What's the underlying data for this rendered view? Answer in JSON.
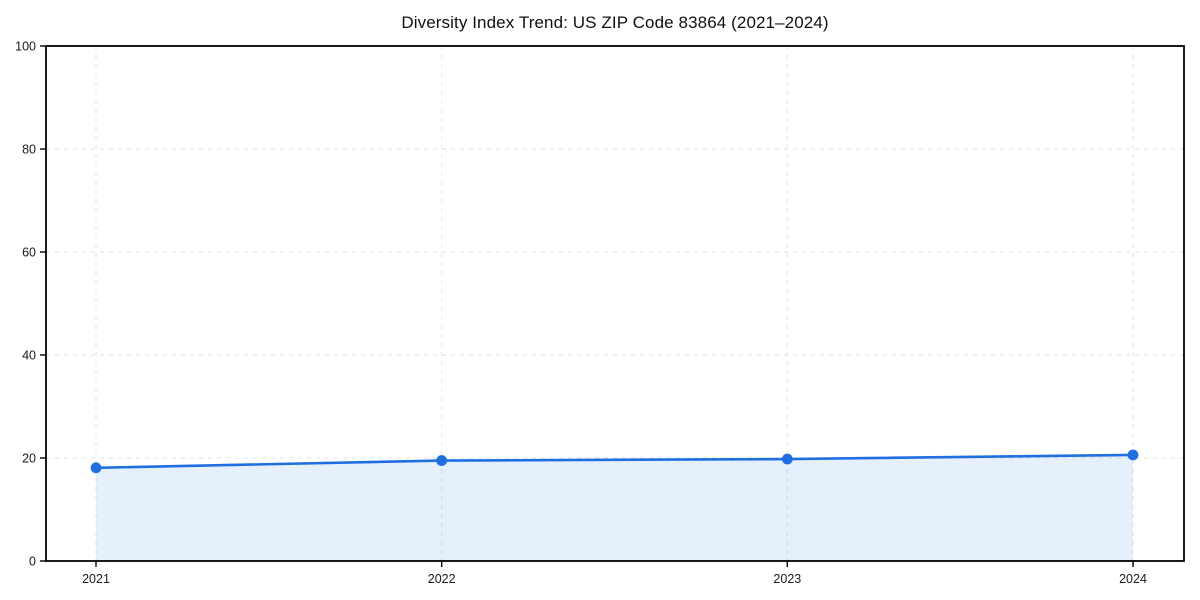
{
  "chart_data": {
    "type": "area",
    "title": "Diversity Index Trend: US ZIP Code 83864 (2021–2024)",
    "categories": [
      "2021",
      "2022",
      "2023",
      "2024"
    ],
    "series": [
      {
        "name": "Diversity Index",
        "values": [
          18.1,
          19.5,
          19.8,
          20.6
        ]
      }
    ],
    "xlabel": "",
    "ylabel": "",
    "ylim": [
      0,
      100
    ],
    "yticks": [
      0,
      20,
      40,
      60,
      80,
      100
    ],
    "grid": "dashed-both-axes",
    "legend": "none",
    "line_color": "#1f6fe0",
    "fill_color": "rgba(31, 111, 224, 0.11)",
    "marker": "circle",
    "marker_color": "#1f6fe0",
    "grid_color": "#e2e2e2",
    "axis_color": "#000000",
    "background_color": "#ffffff"
  }
}
